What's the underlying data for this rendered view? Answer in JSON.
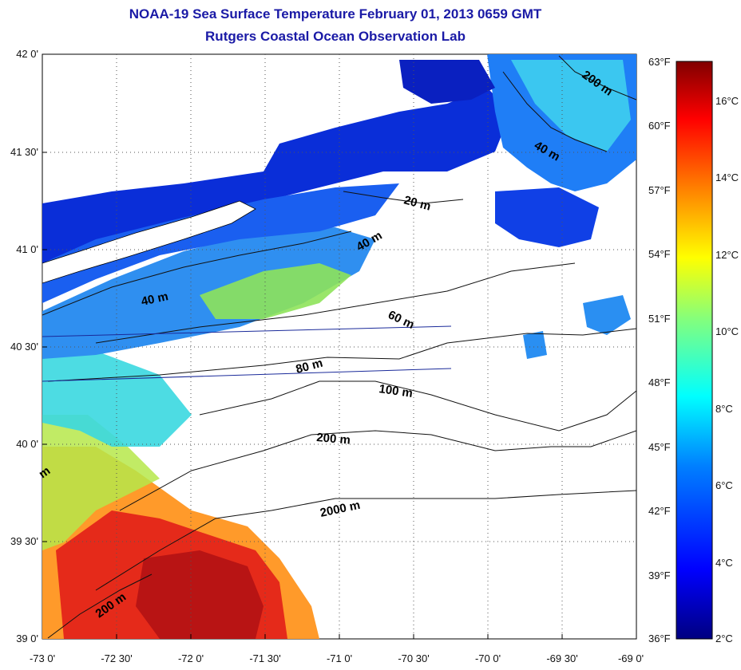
{
  "title": "NOAA-19 Sea Surface Temperature February 01, 2013 0659 GMT",
  "subtitle": "Rutgers Coastal Ocean Observation Lab",
  "map": {
    "lat_range": [
      39.0,
      42.0
    ],
    "lon_range": [
      -73.0,
      -69.0
    ],
    "lat_labels": [
      "42 0'",
      "41 30'",
      "41 0'",
      "40 30'",
      "40 0'",
      "39 30'",
      "39 0'"
    ],
    "lon_labels": [
      "-73 0'",
      "-72 30'",
      "-72 0'",
      "-71 30'",
      "-71 0'",
      "-70 30'",
      "-70 0'",
      "-69 30'",
      "-69 0'"
    ],
    "grid": "dotted",
    "contour_labels": [
      "200 m",
      "40 m",
      "20 m",
      "40 m",
      "40 m",
      "60 m",
      "80 m",
      "100 m",
      "200 m",
      "2000 m",
      "200 m",
      "m"
    ]
  },
  "colorbar": {
    "placement": "right",
    "range_c": [
      2,
      17
    ],
    "fahrenheit_labels": [
      "63°F",
      "60°F",
      "57°F",
      "54°F",
      "51°F",
      "48°F",
      "45°F",
      "42°F",
      "39°F",
      "36°F"
    ],
    "celsius_labels": [
      "16°C",
      "14°C",
      "12°C",
      "10°C",
      "8°C",
      "6°C",
      "4°C",
      "2°C"
    ],
    "colors": [
      "#000080",
      "#0000ff",
      "#0080ff",
      "#00ffff",
      "#80ff80",
      "#ffff00",
      "#ff8000",
      "#ff0000",
      "#800000"
    ]
  }
}
